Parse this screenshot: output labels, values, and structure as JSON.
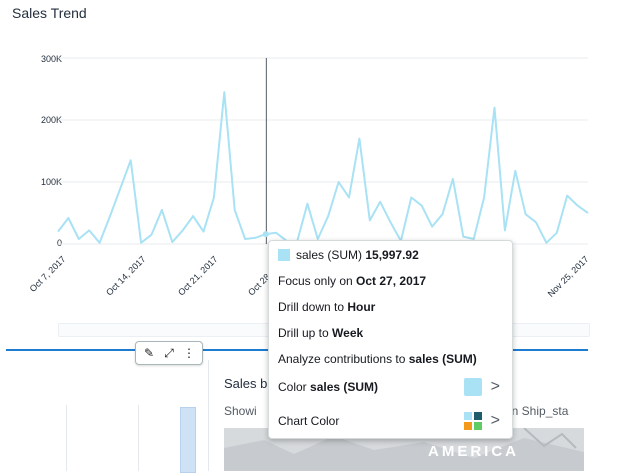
{
  "chart": {
    "title": "Sales Trend",
    "line_color": "#a8e2f4",
    "hover_line_color": "#545b64"
  },
  "chart_data": {
    "type": "line",
    "title": "Sales Trend",
    "ylim": [
      0,
      300000
    ],
    "yticks": [
      "300K",
      "200K",
      "100K",
      "0"
    ],
    "xticks": [
      "Oct 7, 2017",
      "Oct 14, 2017",
      "Oct 21, 2017",
      "Oct 28, 2017",
      "Nov 25, 2017"
    ],
    "grid": true,
    "series": [
      {
        "name": "sales (SUM)",
        "x": [
          "Oct 7, 2017",
          "Oct 8, 2017",
          "Oct 9, 2017",
          "Oct 10, 2017",
          "Oct 11, 2017",
          "Oct 12, 2017",
          "Oct 13, 2017",
          "Oct 14, 2017",
          "Oct 15, 2017",
          "Oct 16, 2017",
          "Oct 17, 2017",
          "Oct 18, 2017",
          "Oct 19, 2017",
          "Oct 20, 2017",
          "Oct 21, 2017",
          "Oct 22, 2017",
          "Oct 23, 2017",
          "Oct 24, 2017",
          "Oct 25, 2017",
          "Oct 26, 2017",
          "Oct 27, 2017",
          "Oct 28, 2017",
          "Oct 29, 2017",
          "Oct 30, 2017",
          "Oct 31, 2017",
          "Nov 1, 2017",
          "Nov 2, 2017",
          "Nov 3, 2017",
          "Nov 4, 2017",
          "Nov 5, 2017",
          "Nov 6, 2017",
          "Nov 7, 2017",
          "Nov 8, 2017",
          "Nov 9, 2017",
          "Nov 10, 2017",
          "Nov 11, 2017",
          "Nov 12, 2017",
          "Nov 13, 2017",
          "Nov 14, 2017",
          "Nov 15, 2017",
          "Nov 16, 2017",
          "Nov 17, 2017",
          "Nov 18, 2017",
          "Nov 19, 2017",
          "Nov 20, 2017",
          "Nov 21, 2017",
          "Nov 22, 2017",
          "Nov 23, 2017",
          "Nov 24, 2017",
          "Nov 25, 2017",
          "Nov 26, 2017",
          "Nov 27, 2017"
        ],
        "values": [
          20000,
          42000,
          8000,
          22000,
          2000,
          45000,
          90000,
          135000,
          2000,
          15000,
          55000,
          3000,
          22000,
          45000,
          20000,
          75000,
          245000,
          55000,
          8000,
          10000,
          15998,
          18000,
          5000,
          3000,
          65000,
          8000,
          45000,
          100000,
          75000,
          170000,
          38000,
          68000,
          35000,
          5000,
          75000,
          62000,
          28000,
          48000,
          105000,
          12000,
          8000,
          75000,
          220000,
          22000,
          118000,
          48000,
          35000,
          2000,
          18000,
          78000,
          62000,
          50000
        ]
      }
    ],
    "focus": {
      "x": "Oct 27, 2017",
      "value": 15997.92
    }
  },
  "toolbar": {
    "icons": [
      "pencil-icon",
      "expand-icon",
      "more-vertical-icon"
    ],
    "edit_glyph": "✎",
    "expand_glyph": "⤢",
    "more_glyph": "⋮"
  },
  "context_menu": {
    "header_series": "sales (SUM)",
    "header_value": "15,997.92",
    "swatch_color": "#a8e2f4",
    "focus_prefix": "Focus only on ",
    "focus_value": "Oct 27, 2017",
    "drill_down_prefix": "Drill down to ",
    "drill_down_value": "Hour",
    "drill_up_prefix": "Drill up to ",
    "drill_up_value": "Week",
    "analyze_prefix": "Analyze contributions to ",
    "analyze_value": "sales (SUM)",
    "color_prefix": "Color ",
    "color_value": "sales (SUM)",
    "chart_color_label": "Chart Color",
    "chevron": ">",
    "palette_colors": [
      "#a8e2f4",
      "#1f5c6b",
      "#f39a1d",
      "#5ecc62"
    ]
  },
  "lower_visual": {
    "title_partial": "Sales b",
    "subtitle_partial": "Showi",
    "subtitle_right_partial": "in Ship_sta",
    "map_label": "AMERICA"
  }
}
